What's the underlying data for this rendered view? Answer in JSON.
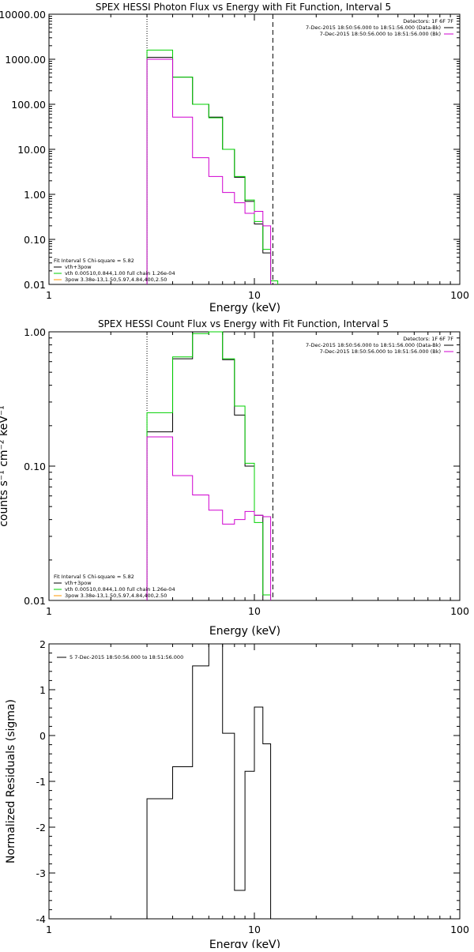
{
  "colors": {
    "black": "#000000",
    "green": "#00d000",
    "magenta": "#d000d0",
    "orange": "#ff9900"
  },
  "detectors_label": "Detectors: 1F 6F 7F",
  "legend": {
    "fit_line": "Fit Interval 5   Chi-square = 5.82",
    "entries": [
      {
        "text": "vth+3pow",
        "color": "#000000"
      },
      {
        "text": "vth 0.00510,0.844,1.00   full chain 1.26e-04",
        "color": "#00d000"
      },
      {
        "text": "3pow 3.38e-13,1.50,5.97,4.84,400,2.50",
        "color": "#ff9900"
      }
    ],
    "intervals": [
      {
        "text": "7-Dec-2015 18:50:56.000 to 18:51:56.000 (Data-Bk)",
        "color": "#000000"
      },
      {
        "text": "7-Dec-2015 18:50:56.000 to 18:51:56.000 (Bk)",
        "color": "#d000d0"
      }
    ]
  },
  "chart_data": [
    {
      "type": "line",
      "title": "SPEX HESSI Photon Flux vs Energy with Fit Function, Interval 5",
      "xlabel": "Energy (keV)",
      "ylabel": "",
      "xscale": "log",
      "yscale": "log",
      "xlim": [
        1,
        100
      ],
      "ylim": [
        0.01,
        10000
      ],
      "xticks": [
        1,
        10,
        100
      ],
      "xticklabels": [
        "1",
        "10",
        "100"
      ],
      "yticks": [
        0.01,
        0.1,
        1,
        10,
        100,
        1000,
        10000
      ],
      "yticklabels": [
        "0.01",
        "0.10",
        "1.00",
        "10.00",
        "100.00",
        "1000.00",
        "10000.00"
      ],
      "vlines": [
        {
          "x": 3,
          "style": "dotted"
        },
        {
          "x": 12.3,
          "style": "dashed"
        }
      ],
      "edges": [
        3,
        4,
        5,
        6,
        7,
        8,
        9,
        10,
        11,
        12,
        13,
        14
      ],
      "series": [
        {
          "color": "#000000",
          "values": [
            1100,
            400,
            100,
            52,
            10,
            2.4,
            0.7,
            0.22,
            0.05,
            null,
            null
          ]
        },
        {
          "color": "#00d000",
          "values": [
            1600,
            400,
            100,
            50,
            10,
            2.5,
            0.75,
            0.25,
            0.06,
            0.012,
            null
          ]
        },
        {
          "color": "#d000d0",
          "values": [
            1000,
            52,
            6.5,
            2.5,
            1.1,
            0.65,
            0.38,
            0.42,
            0.2,
            null,
            null
          ]
        }
      ]
    },
    {
      "type": "line",
      "title": "SPEX HESSI Count Flux vs Energy with Fit Function, Interval 5",
      "xlabel": "Energy (keV)",
      "ylabel": "counts s⁻¹ cm⁻² keV⁻¹",
      "xscale": "log",
      "yscale": "log",
      "xlim": [
        1,
        100
      ],
      "ylim": [
        0.01,
        1.0
      ],
      "xticks": [
        1,
        10,
        100
      ],
      "xticklabels": [
        "1",
        "10",
        "100"
      ],
      "yticks": [
        0.01,
        0.1,
        1.0
      ],
      "yticklabels": [
        "0.01",
        "0.10",
        "1.00"
      ],
      "vlines": [
        {
          "x": 3,
          "style": "dotted"
        },
        {
          "x": 12.3,
          "style": "dashed"
        }
      ],
      "edges": [
        3,
        4,
        5,
        6,
        7,
        8,
        9,
        10,
        11,
        12
      ],
      "series": [
        {
          "color": "#000000",
          "values": [
            0.18,
            0.63,
            1.0,
            1.02,
            0.62,
            0.24,
            0.1,
            0.043,
            0.01
          ]
        },
        {
          "color": "#00d000",
          "values": [
            0.25,
            0.65,
            0.97,
            1.0,
            0.63,
            0.28,
            0.105,
            0.038,
            0.011
          ]
        },
        {
          "color": "#d000d0",
          "values": [
            0.165,
            0.085,
            0.061,
            0.047,
            0.037,
            0.04,
            0.046,
            0.043,
            0.042
          ]
        }
      ]
    },
    {
      "type": "line",
      "title": "",
      "xlabel": "Energy (keV)",
      "ylabel": "Normalized Residuals (sigma)",
      "xscale": "log",
      "yscale": "linear",
      "xlim": [
        1,
        100
      ],
      "ylim": [
        -4,
        2
      ],
      "xticks": [
        1,
        10,
        100
      ],
      "xticklabels": [
        "1",
        "10",
        "100"
      ],
      "yticks": [
        -4,
        -3,
        -2,
        -1,
        0,
        1,
        2
      ],
      "yticklabels": [
        "-4",
        "-3",
        "-2",
        "-1",
        "0",
        "1",
        "2"
      ],
      "legend_text": "5  7-Dec-2015 18:50:56.000 to 18:51:56.000",
      "edges": [
        3,
        4,
        5,
        6,
        7,
        8,
        9,
        10,
        11,
        12
      ],
      "series": [
        {
          "color": "#000000",
          "values": [
            -1.38,
            -0.68,
            1.52,
            2.02,
            0.05,
            -3.38,
            -0.78,
            0.62,
            -0.18
          ]
        }
      ]
    }
  ]
}
